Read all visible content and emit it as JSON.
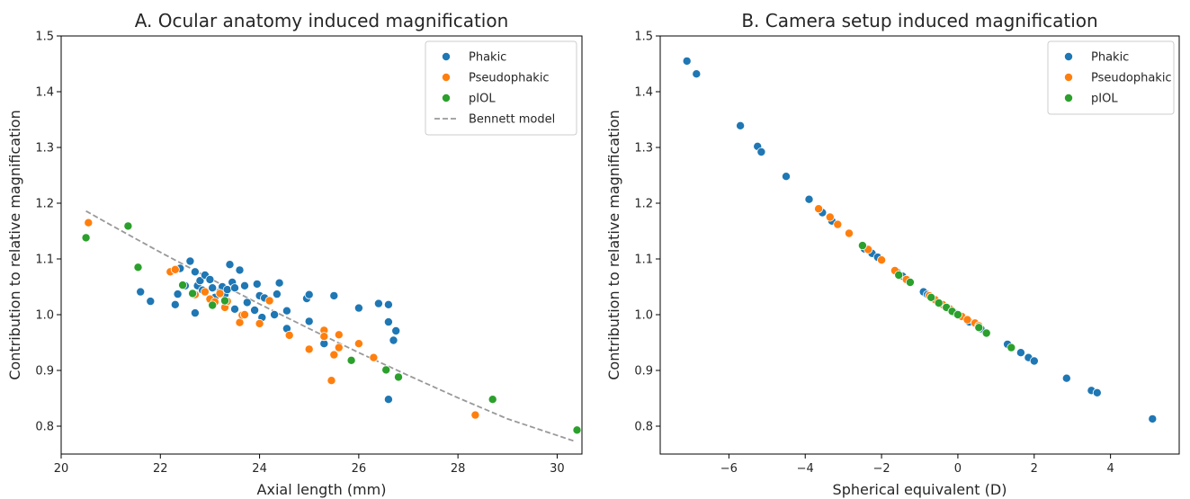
{
  "colors": {
    "Phakic": "#1f77b4",
    "Pseudophakic": "#ff7f0e",
    "pIOL": "#2ca02c",
    "Bennett model": "#999999"
  },
  "chart_data": [
    {
      "type": "scatter",
      "title": "A. Ocular anatomy induced magnification",
      "xlabel": "Axial length (mm)",
      "ylabel": "Contribution to relative magnification",
      "xlim": [
        20,
        30.5
      ],
      "ylim": [
        0.75,
        1.5
      ],
      "xticks": [
        20,
        22,
        24,
        26,
        28,
        30
      ],
      "yticks": [
        0.8,
        0.9,
        1.0,
        1.1,
        1.2,
        1.3,
        1.4,
        1.5
      ],
      "xtick_labels": [
        "20",
        "22",
        "24",
        "26",
        "28",
        "30"
      ],
      "ytick_labels": [
        "0.8",
        "0.9",
        "1.0",
        "1.1",
        "1.2",
        "1.3",
        "1.4",
        "1.5"
      ],
      "legend_position": "top-right",
      "legend": [
        "Phakic",
        "Pseudophakic",
        "pIOL",
        "Bennett model"
      ],
      "series": [
        {
          "name": "Phakic",
          "points": [
            [
              21.6,
              1.041
            ],
            [
              21.8,
              1.024
            ],
            [
              22.3,
              1.018
            ],
            [
              22.35,
              1.037
            ],
            [
              22.4,
              1.083
            ],
            [
              22.5,
              1.052
            ],
            [
              22.6,
              1.096
            ],
            [
              22.7,
              1.077
            ],
            [
              22.75,
              1.052
            ],
            [
              22.8,
              1.061
            ],
            [
              22.85,
              1.044
            ],
            [
              22.9,
              1.071
            ],
            [
              23.0,
              1.063
            ],
            [
              23.05,
              1.048
            ],
            [
              23.1,
              1.031
            ],
            [
              23.2,
              1.041
            ],
            [
              23.25,
              1.05
            ],
            [
              23.3,
              1.036
            ],
            [
              23.35,
              1.045
            ],
            [
              23.4,
              1.09
            ],
            [
              23.45,
              1.058
            ],
            [
              23.5,
              1.048
            ],
            [
              23.5,
              1.01
            ],
            [
              23.6,
              1.08
            ],
            [
              23.7,
              1.052
            ],
            [
              23.75,
              1.022
            ],
            [
              23.9,
              1.008
            ],
            [
              23.95,
              1.055
            ],
            [
              24.0,
              1.034
            ],
            [
              24.05,
              0.995
            ],
            [
              24.1,
              1.03
            ],
            [
              24.3,
              1.0
            ],
            [
              24.35,
              1.037
            ],
            [
              24.4,
              1.057
            ],
            [
              24.55,
              1.007
            ],
            [
              24.55,
              0.975
            ],
            [
              24.95,
              1.029
            ],
            [
              25.0,
              1.036
            ],
            [
              25.0,
              0.988
            ],
            [
              25.3,
              0.948
            ],
            [
              25.5,
              1.034
            ],
            [
              26.0,
              1.012
            ],
            [
              26.4,
              1.02
            ],
            [
              26.6,
              1.018
            ],
            [
              26.6,
              0.987
            ],
            [
              26.7,
              0.954
            ],
            [
              26.75,
              0.971
            ],
            [
              26.6,
              0.848
            ],
            [
              22.7,
              1.003
            ]
          ]
        },
        {
          "name": "Pseudophakic",
          "points": [
            [
              20.55,
              1.165
            ],
            [
              22.2,
              1.077
            ],
            [
              22.3,
              1.081
            ],
            [
              22.7,
              1.036
            ],
            [
              22.9,
              1.041
            ],
            [
              23.0,
              1.028
            ],
            [
              23.1,
              1.023
            ],
            [
              23.2,
              1.038
            ],
            [
              23.3,
              1.013
            ],
            [
              23.35,
              1.024
            ],
            [
              23.6,
              0.986
            ],
            [
              23.65,
              0.999
            ],
            [
              23.7,
              1.0
            ],
            [
              24.0,
              0.984
            ],
            [
              24.2,
              1.025
            ],
            [
              24.6,
              0.963
            ],
            [
              25.0,
              0.938
            ],
            [
              25.3,
              0.972
            ],
            [
              25.3,
              0.961
            ],
            [
              25.5,
              0.928
            ],
            [
              25.45,
              0.882
            ],
            [
              25.6,
              0.964
            ],
            [
              25.6,
              0.941
            ],
            [
              26.0,
              0.948
            ],
            [
              26.3,
              0.923
            ],
            [
              28.35,
              0.82
            ]
          ]
        },
        {
          "name": "pIOL",
          "points": [
            [
              20.5,
              1.138
            ],
            [
              21.35,
              1.159
            ],
            [
              21.55,
              1.085
            ],
            [
              22.45,
              1.053
            ],
            [
              22.65,
              1.038
            ],
            [
              23.05,
              1.017
            ],
            [
              23.3,
              1.025
            ],
            [
              25.85,
              0.918
            ],
            [
              26.55,
              0.901
            ],
            [
              26.8,
              0.888
            ],
            [
              28.7,
              0.848
            ],
            [
              30.4,
              0.793
            ]
          ]
        },
        {
          "name": "Bennett model",
          "line": true,
          "points": [
            [
              20.5,
              1.186
            ],
            [
              21.0,
              1.161
            ],
            [
              22.0,
              1.112
            ],
            [
              23.0,
              1.065
            ],
            [
              24.0,
              1.019
            ],
            [
              25.0,
              0.975
            ],
            [
              26.0,
              0.932
            ],
            [
              27.0,
              0.891
            ],
            [
              28.0,
              0.851
            ],
            [
              29.0,
              0.813
            ],
            [
              30.35,
              0.773
            ]
          ]
        }
      ]
    },
    {
      "type": "scatter",
      "title": "B. Camera setup induced magnification",
      "xlabel": "Spherical equivalent (D)",
      "ylabel": "Contribution to relative magnification",
      "xlim": [
        -7.8,
        5.8
      ],
      "ylim": [
        0.75,
        1.5
      ],
      "xticks": [
        -6,
        -4,
        -2,
        0,
        2,
        4
      ],
      "yticks": [
        0.8,
        0.9,
        1.0,
        1.1,
        1.2,
        1.3,
        1.4,
        1.5
      ],
      "xtick_labels": [
        "−6",
        "−4",
        "−2",
        "0",
        "2",
        "4"
      ],
      "ytick_labels": [
        "0.8",
        "0.9",
        "1.0",
        "1.1",
        "1.2",
        "1.3",
        "1.4",
        "1.5"
      ],
      "legend_position": "top-right",
      "legend": [
        "Phakic",
        "Pseudophakic",
        "pIOL"
      ],
      "series": [
        {
          "name": "Phakic",
          "points": [
            [
              -7.1,
              1.455
            ],
            [
              -6.85,
              1.432
            ],
            [
              -5.7,
              1.339
            ],
            [
              -5.25,
              1.302
            ],
            [
              -5.15,
              1.292
            ],
            [
              -4.5,
              1.248
            ],
            [
              -3.9,
              1.207
            ],
            [
              -3.55,
              1.183
            ],
            [
              -3.3,
              1.168
            ],
            [
              -2.45,
              1.118
            ],
            [
              -2.25,
              1.11
            ],
            [
              -2.1,
              1.103
            ],
            [
              -1.6,
              1.077
            ],
            [
              -1.45,
              1.069
            ],
            [
              -0.9,
              1.041
            ],
            [
              -0.8,
              1.036
            ],
            [
              -0.25,
              1.012
            ],
            [
              -0.05,
              1.002
            ],
            [
              0.3,
              0.987
            ],
            [
              0.6,
              0.975
            ],
            [
              1.3,
              0.947
            ],
            [
              1.65,
              0.932
            ],
            [
              1.85,
              0.923
            ],
            [
              2.0,
              0.917
            ],
            [
              2.85,
              0.886
            ],
            [
              3.5,
              0.864
            ],
            [
              3.65,
              0.86
            ],
            [
              5.1,
              0.813
            ]
          ]
        },
        {
          "name": "Pseudophakic",
          "points": [
            [
              -3.65,
              1.19
            ],
            [
              -3.35,
              1.175
            ],
            [
              -3.15,
              1.162
            ],
            [
              -2.85,
              1.146
            ],
            [
              -2.35,
              1.117
            ],
            [
              -2.0,
              1.098
            ],
            [
              -1.65,
              1.079
            ],
            [
              -1.35,
              1.063
            ],
            [
              -0.75,
              1.034
            ],
            [
              -0.6,
              1.027
            ],
            [
              -0.4,
              1.018
            ],
            [
              -0.2,
              1.01
            ],
            [
              0.1,
              0.997
            ],
            [
              0.25,
              0.991
            ],
            [
              0.45,
              0.985
            ],
            [
              0.55,
              0.98
            ]
          ]
        },
        {
          "name": "pIOL",
          "points": [
            [
              -2.5,
              1.124
            ],
            [
              -1.55,
              1.071
            ],
            [
              -1.25,
              1.058
            ],
            [
              -0.7,
              1.031
            ],
            [
              -0.5,
              1.021
            ],
            [
              -0.3,
              1.013
            ],
            [
              -0.15,
              1.006
            ],
            [
              0.0,
              1.0
            ],
            [
              0.55,
              0.977
            ],
            [
              0.75,
              0.967
            ],
            [
              1.4,
              0.941
            ]
          ]
        }
      ]
    }
  ]
}
